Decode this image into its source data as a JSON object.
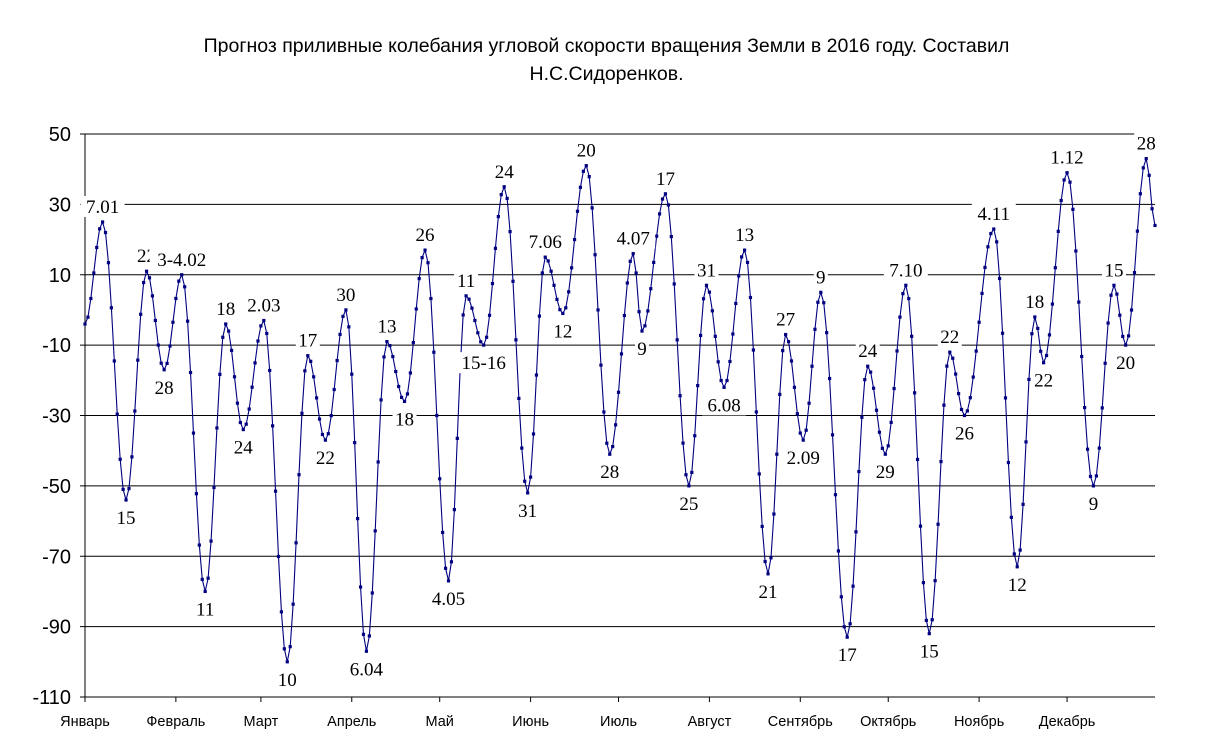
{
  "chart_data": {
    "type": "line",
    "title": "Прогноз приливные колебания угловой скорости вращения Земли в 2016 году. Составил Н.С.Сидоренков.",
    "title_lines": [
      "Прогноз приливные колебания угловой скорости вращения Земли в 2016 году. Составил",
      "Н.С.Сидоренков."
    ],
    "xlabel": "",
    "ylabel": "",
    "ylim": [
      -110,
      50
    ],
    "yticks": [
      50,
      30,
      10,
      -10,
      -30,
      -50,
      -70,
      -90,
      -110
    ],
    "xlim": [
      1,
      366
    ],
    "grid": "horizontal",
    "legend": "none",
    "months": [
      "Январь",
      "Февраль",
      "Март",
      "Апрель",
      "Май",
      "Июнь",
      "Июль",
      "Август",
      "Сентябрь",
      "Октябрь",
      "Ноябрь",
      "Декабрь"
    ],
    "month_start_day": [
      1,
      32,
      61,
      92,
      122,
      153,
      183,
      214,
      245,
      275,
      306,
      336
    ],
    "line_color": "#000080",
    "series": [
      {
        "points": [
          [
            1,
            -4
          ],
          [
            7,
            25
          ],
          [
            15,
            -54
          ],
          [
            22,
            11
          ],
          [
            28,
            -17
          ],
          [
            34,
            10
          ],
          [
            42,
            -80
          ],
          [
            49,
            -4
          ],
          [
            55,
            -34
          ],
          [
            62,
            -3
          ],
          [
            70,
            -100
          ],
          [
            77,
            -13
          ],
          [
            83,
            -37
          ],
          [
            90,
            0
          ],
          [
            97,
            -97
          ],
          [
            104,
            -9
          ],
          [
            110,
            -26
          ],
          [
            117,
            17
          ],
          [
            125,
            -77
          ],
          [
            131,
            4
          ],
          [
            137,
            -10
          ],
          [
            144,
            35
          ],
          [
            152,
            -52
          ],
          [
            158,
            15
          ],
          [
            164,
            -1
          ],
          [
            172,
            41
          ],
          [
            180,
            -41
          ],
          [
            188,
            16
          ],
          [
            191,
            -6
          ],
          [
            199,
            33
          ],
          [
            207,
            -50
          ],
          [
            213,
            7
          ],
          [
            219,
            -22
          ],
          [
            226,
            17
          ],
          [
            234,
            -75
          ],
          [
            240,
            -7
          ],
          [
            246,
            -37
          ],
          [
            252,
            5
          ],
          [
            261,
            -93
          ],
          [
            268,
            -16
          ],
          [
            274,
            -41
          ],
          [
            281,
            7
          ],
          [
            289,
            -92
          ],
          [
            296,
            -12
          ],
          [
            301,
            -30
          ],
          [
            311,
            23
          ],
          [
            319,
            -73
          ],
          [
            325,
            -2
          ],
          [
            328,
            -15
          ],
          [
            336,
            39
          ],
          [
            345,
            -50
          ],
          [
            352,
            7
          ],
          [
            356,
            -10
          ],
          [
            363,
            43
          ],
          [
            366,
            24
          ]
        ]
      }
    ],
    "annotations": [
      {
        "text": "7.01",
        "x": 7,
        "y": 25
      },
      {
        "text": "15",
        "x": 15,
        "y": -54
      },
      {
        "text": "22",
        "x": 22,
        "y": 11
      },
      {
        "text": "28",
        "x": 28,
        "y": -17
      },
      {
        "text": "3-4.02",
        "x": 34,
        "y": 10
      },
      {
        "text": "11",
        "x": 42,
        "y": -80
      },
      {
        "text": "18",
        "x": 49,
        "y": -4
      },
      {
        "text": "24",
        "x": 55,
        "y": -34
      },
      {
        "text": "2.03",
        "x": 62,
        "y": -3
      },
      {
        "text": "10",
        "x": 70,
        "y": -100
      },
      {
        "text": "17",
        "x": 77,
        "y": -13
      },
      {
        "text": "22",
        "x": 83,
        "y": -37
      },
      {
        "text": "30",
        "x": 90,
        "y": 0
      },
      {
        "text": "6.04",
        "x": 97,
        "y": -97
      },
      {
        "text": "13",
        "x": 104,
        "y": -9
      },
      {
        "text": "18",
        "x": 110,
        "y": -26
      },
      {
        "text": "26",
        "x": 117,
        "y": 17
      },
      {
        "text": "4.05",
        "x": 125,
        "y": -77
      },
      {
        "text": "11",
        "x": 131,
        "y": 4
      },
      {
        "text": "15-16",
        "x": 137,
        "y": -10
      },
      {
        "text": "24",
        "x": 144,
        "y": 35
      },
      {
        "text": "31",
        "x": 152,
        "y": -52
      },
      {
        "text": "7.06",
        "x": 158,
        "y": 15
      },
      {
        "text": "12",
        "x": 164,
        "y": -1
      },
      {
        "text": "20",
        "x": 172,
        "y": 41
      },
      {
        "text": "28",
        "x": 180,
        "y": -41
      },
      {
        "text": "4.07",
        "x": 188,
        "y": 16
      },
      {
        "text": "9",
        "x": 191,
        "y": -6
      },
      {
        "text": "17",
        "x": 199,
        "y": 33
      },
      {
        "text": "25",
        "x": 207,
        "y": -50
      },
      {
        "text": "31",
        "x": 213,
        "y": 7
      },
      {
        "text": "6.08",
        "x": 219,
        "y": -22
      },
      {
        "text": "13",
        "x": 226,
        "y": 17
      },
      {
        "text": "21",
        "x": 234,
        "y": -75
      },
      {
        "text": "27",
        "x": 240,
        "y": -7
      },
      {
        "text": "2.09",
        "x": 246,
        "y": -37
      },
      {
        "text": "9",
        "x": 252,
        "y": 5
      },
      {
        "text": "17",
        "x": 261,
        "y": -93
      },
      {
        "text": "24",
        "x": 268,
        "y": -16
      },
      {
        "text": "29",
        "x": 274,
        "y": -41
      },
      {
        "text": "7.10",
        "x": 281,
        "y": 7
      },
      {
        "text": "15",
        "x": 289,
        "y": -92
      },
      {
        "text": "22",
        "x": 296,
        "y": -12
      },
      {
        "text": "26",
        "x": 301,
        "y": -30
      },
      {
        "text": "4.11",
        "x": 311,
        "y": 23
      },
      {
        "text": "12",
        "x": 319,
        "y": -73
      },
      {
        "text": "18",
        "x": 325,
        "y": -2
      },
      {
        "text": "22",
        "x": 328,
        "y": -15
      },
      {
        "text": "1.12",
        "x": 336,
        "y": 39
      },
      {
        "text": "9",
        "x": 345,
        "y": -50
      },
      {
        "text": "15",
        "x": 352,
        "y": 7
      },
      {
        "text": "20",
        "x": 356,
        "y": -10
      },
      {
        "text": "28",
        "x": 363,
        "y": 43
      }
    ]
  }
}
